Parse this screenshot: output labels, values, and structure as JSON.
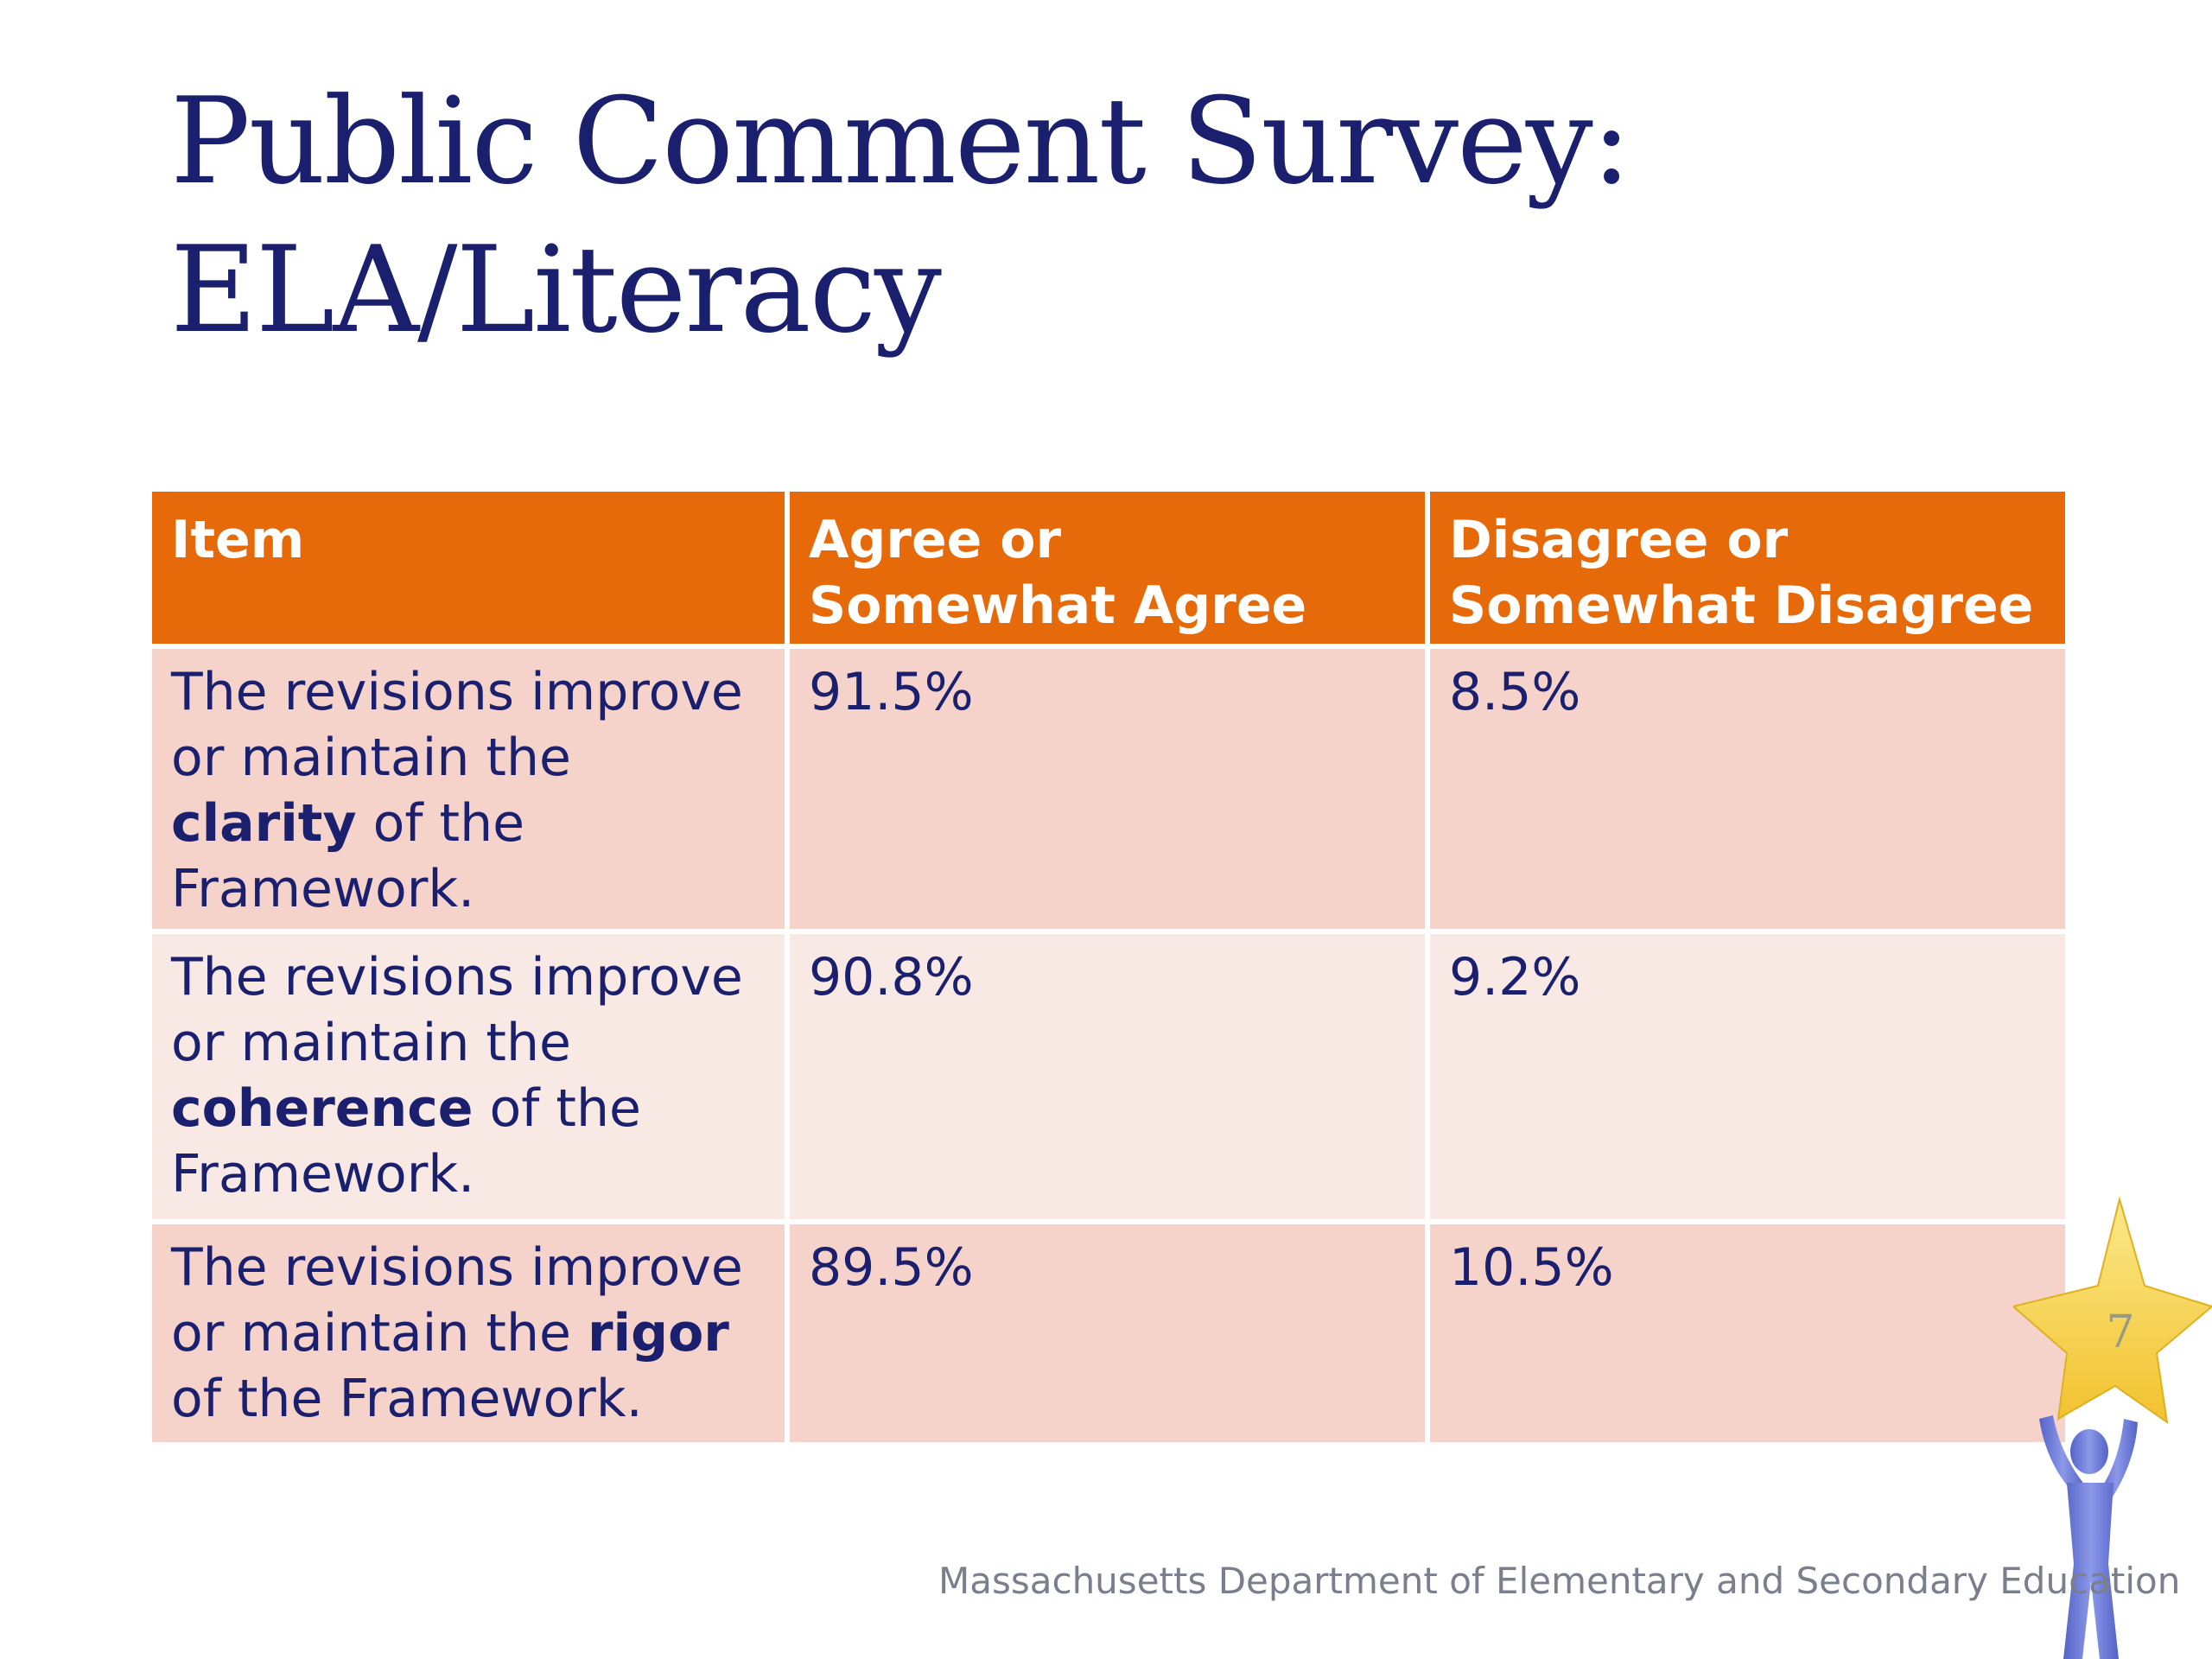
{
  "slide": {
    "title_line1": "Public Comment Survey:",
    "title_line2": "ELA/Literacy",
    "page_number": "7",
    "footer": "Massachusetts Department of Elementary and Secondary Education"
  },
  "table": {
    "headers": {
      "item": "Item",
      "agree_line1": "Agree or",
      "agree_line2": "Somewhat Agree",
      "disagree_line1": "Disagree or",
      "disagree_line2": "Somewhat Disagree"
    },
    "rows": [
      {
        "text_before": "The revisions improve or maintain the ",
        "keyword": "clarity",
        "text_after": " of the Framework.",
        "agree": "91.5%",
        "disagree": "8.5%"
      },
      {
        "text_before": "The revisions improve or maintain the ",
        "keyword": "coherence",
        "text_after": " of the Framework.",
        "agree": "90.8%",
        "disagree": "9.2%"
      },
      {
        "text_before": "The revisions improve or maintain the ",
        "keyword": "rigor",
        "text_after": " of the Framework.",
        "agree": "89.5%",
        "disagree": "10.5%"
      }
    ]
  },
  "colors": {
    "title": "#1a1f6e",
    "header_bg": "#e66a0a",
    "row_dark": "#f5d2ca",
    "row_light": "#f9e9e5",
    "star": "#f6d24a",
    "figure": "#6a78d6"
  },
  "icons": {
    "mascot": "star-holding-person-icon"
  }
}
